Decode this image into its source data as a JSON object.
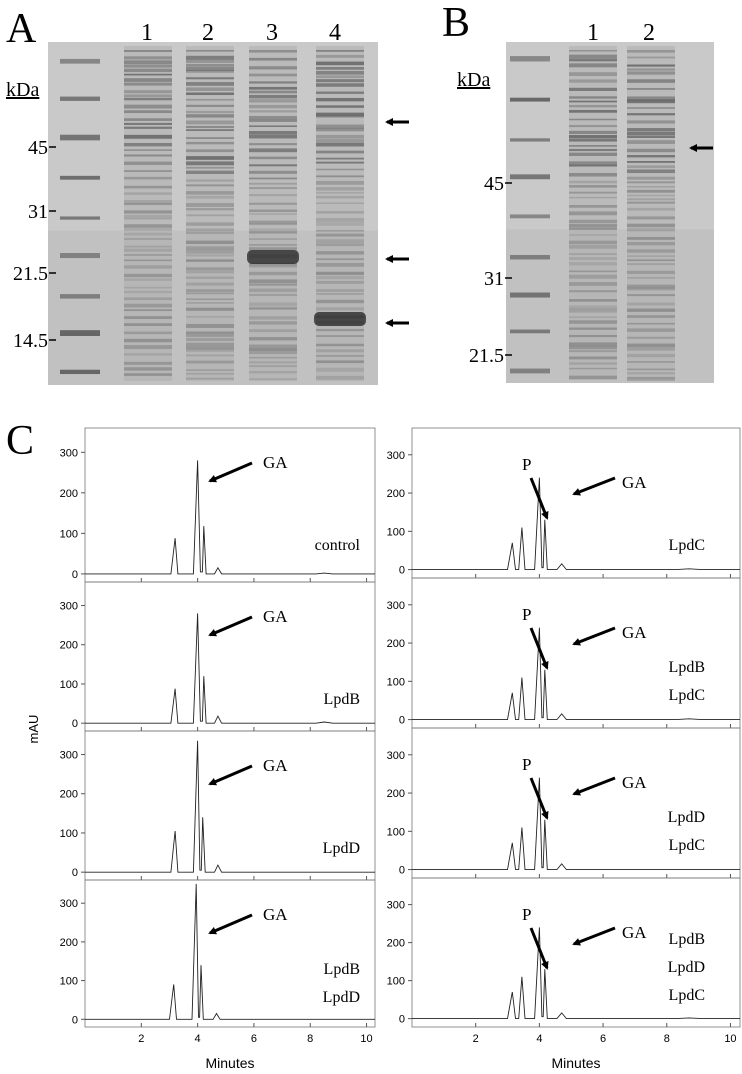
{
  "panel_a": {
    "letter": "A",
    "kda_label": "kDa",
    "lanes": [
      "1",
      "2",
      "3",
      "4"
    ],
    "markers": [
      "45",
      "31",
      "21.5",
      "14.5"
    ]
  },
  "panel_b": {
    "letter": "B",
    "kda_label": "kDa",
    "lanes": [
      "1",
      "2"
    ],
    "markers": [
      "45",
      "31",
      "21.5"
    ]
  },
  "panel_c": {
    "letter": "C",
    "y_label": "mAU",
    "x_label": "Minutes"
  },
  "chart_data": [
    {
      "type": "line",
      "x": [
        0,
        3.05,
        3.2,
        3.3,
        3.85,
        4.0,
        4.1,
        4.17,
        4.22,
        4.3,
        4.6,
        4.72,
        4.85,
        8.2,
        8.5,
        8.8,
        10.3
      ],
      "values": [
        0,
        0,
        88,
        0,
        0,
        280,
        5,
        5,
        118,
        0,
        0,
        15,
        0,
        0,
        2,
        0,
        0
      ],
      "xlim": [
        0,
        10.3
      ],
      "xticks": [
        2,
        4,
        6,
        8,
        10
      ],
      "ylim": [
        -20,
        360
      ],
      "yticks": [
        0,
        100,
        200,
        300
      ],
      "annotations": [
        "GA"
      ],
      "labels": [
        "control"
      ]
    },
    {
      "type": "line",
      "x": [
        0,
        3.05,
        3.2,
        3.3,
        3.85,
        4.0,
        4.1,
        4.17,
        4.22,
        4.3,
        4.6,
        4.72,
        4.85,
        8.2,
        8.5,
        8.8,
        10.3
      ],
      "values": [
        0,
        0,
        88,
        0,
        0,
        280,
        5,
        5,
        120,
        0,
        0,
        18,
        0,
        0,
        3,
        0,
        0
      ],
      "xlim": [
        0,
        10.3
      ],
      "xticks": [
        2,
        4,
        6,
        8,
        10
      ],
      "ylim": [
        -20,
        360
      ],
      "yticks": [
        0,
        100,
        200,
        300
      ],
      "annotations": [
        "GA"
      ],
      "labels": [
        "LpdB"
      ]
    },
    {
      "type": "line",
      "x": [
        0,
        3.05,
        3.2,
        3.3,
        3.85,
        4.0,
        4.08,
        4.13,
        4.18,
        4.27,
        4.6,
        4.72,
        4.85,
        10.3
      ],
      "values": [
        0,
        0,
        105,
        0,
        0,
        335,
        5,
        5,
        140,
        0,
        0,
        18,
        0,
        0
      ],
      "xlim": [
        0,
        10.3
      ],
      "xticks": [
        2,
        4,
        6,
        8,
        10
      ],
      "ylim": [
        -20,
        360
      ],
      "yticks": [
        0,
        100,
        200,
        300
      ],
      "annotations": [
        "GA"
      ],
      "labels": [
        "LpdD"
      ]
    },
    {
      "type": "line",
      "x": [
        0,
        3.0,
        3.15,
        3.25,
        3.8,
        3.95,
        4.03,
        4.07,
        4.12,
        4.2,
        4.55,
        4.67,
        4.8,
        10.3
      ],
      "values": [
        0,
        0,
        90,
        0,
        0,
        350,
        5,
        5,
        140,
        0,
        0,
        15,
        0,
        0
      ],
      "xlim": [
        0,
        10.3
      ],
      "xticks": [
        2,
        4,
        6,
        8,
        10
      ],
      "ylim": [
        -20,
        360
      ],
      "yticks": [
        0,
        100,
        200,
        300
      ],
      "annotations": [
        "GA"
      ],
      "labels": [
        "LpdB",
        "LpdD"
      ]
    },
    {
      "type": "line",
      "x": [
        0,
        3.0,
        3.15,
        3.25,
        3.35,
        3.45,
        3.55,
        3.85,
        4.0,
        4.08,
        4.12,
        4.17,
        4.25,
        4.55,
        4.7,
        4.85,
        8.3,
        8.7,
        9.1,
        10.3
      ],
      "values": [
        0,
        0,
        70,
        0,
        0,
        110,
        0,
        0,
        240,
        5,
        5,
        130,
        0,
        0,
        15,
        0,
        0,
        2,
        0,
        0
      ],
      "xlim": [
        0,
        10.3
      ],
      "xticks": [
        2,
        4,
        6,
        8,
        10
      ],
      "ylim": [
        -22,
        370
      ],
      "yticks": [
        0,
        100,
        200,
        300
      ],
      "annotations": [
        "P",
        "GA"
      ],
      "labels": [
        "LpdC"
      ]
    },
    {
      "type": "line",
      "x": [
        0,
        3.0,
        3.15,
        3.25,
        3.35,
        3.45,
        3.55,
        3.85,
        4.0,
        4.08,
        4.12,
        4.17,
        4.25,
        4.55,
        4.7,
        4.85,
        8.3,
        8.7,
        9.1,
        10.3
      ],
      "values": [
        0,
        0,
        70,
        0,
        0,
        110,
        0,
        0,
        240,
        5,
        5,
        130,
        0,
        0,
        15,
        0,
        0,
        2,
        0,
        0
      ],
      "xlim": [
        0,
        10.3
      ],
      "xticks": [
        2,
        4,
        6,
        8,
        10
      ],
      "ylim": [
        -22,
        370
      ],
      "yticks": [
        0,
        100,
        200,
        300
      ],
      "annotations": [
        "P",
        "GA"
      ],
      "labels": [
        "LpdB",
        "LpdC"
      ]
    },
    {
      "type": "line",
      "x": [
        0,
        3.0,
        3.15,
        3.25,
        3.35,
        3.45,
        3.55,
        3.85,
        4.0,
        4.08,
        4.12,
        4.17,
        4.25,
        4.55,
        4.7,
        4.85,
        10.3
      ],
      "values": [
        0,
        0,
        70,
        0,
        0,
        110,
        0,
        0,
        240,
        5,
        5,
        130,
        0,
        0,
        15,
        0,
        0
      ],
      "xlim": [
        0,
        10.3
      ],
      "xticks": [
        2,
        4,
        6,
        8,
        10
      ],
      "ylim": [
        -22,
        370
      ],
      "yticks": [
        0,
        100,
        200,
        300
      ],
      "annotations": [
        "P",
        "GA"
      ],
      "labels": [
        "LpdD",
        "LpdC"
      ]
    },
    {
      "type": "line",
      "x": [
        0,
        3.0,
        3.15,
        3.25,
        3.35,
        3.45,
        3.55,
        3.85,
        4.0,
        4.08,
        4.12,
        4.17,
        4.25,
        4.55,
        4.7,
        4.85,
        8.3,
        8.7,
        9.1,
        10.3
      ],
      "values": [
        0,
        0,
        70,
        0,
        0,
        110,
        0,
        0,
        240,
        5,
        5,
        130,
        0,
        0,
        15,
        0,
        0,
        2,
        0,
        0
      ],
      "xlim": [
        0,
        10.3
      ],
      "xticks": [
        2,
        4,
        6,
        8,
        10
      ],
      "ylim": [
        -22,
        370
      ],
      "yticks": [
        0,
        100,
        200,
        300
      ],
      "annotations": [
        "P",
        "GA"
      ],
      "labels": [
        "LpdB",
        "LpdD",
        "LpdC"
      ]
    }
  ]
}
